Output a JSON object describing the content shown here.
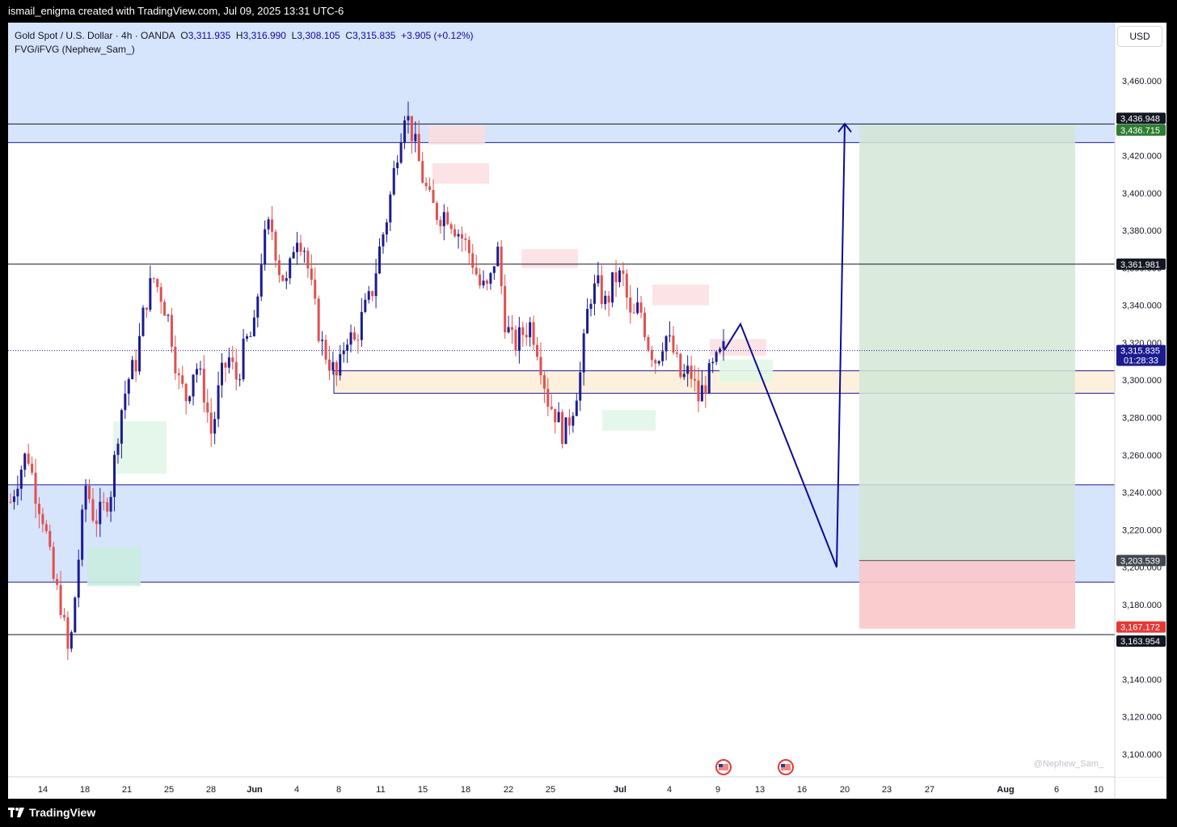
{
  "header": {
    "caption": "ismail_enigma created with TradingView.com, Jul 09, 2025 13:31 UTC-6"
  },
  "legend": {
    "symbol": "Gold Spot / U.S. Dollar · 4h · OANDA",
    "o_label": "O",
    "open": "3,311.935",
    "h_label": "H",
    "high": "3,316.990",
    "l_label": "L",
    "low": "3,308.105",
    "c_label": "C",
    "close": "3,315.835",
    "change": "+3.905 (+0.12%)",
    "indicator": "FVG/iFVG (Nephew_Sam_)"
  },
  "currency_button": "USD",
  "watermark": "@Nephew_Sam_",
  "footer": {
    "brand": "TradingView"
  },
  "colors": {
    "up_candle": "#1c1c8f",
    "down_candle": "#e0504f",
    "zone_blue": "#d6e4fc",
    "zone_line": "#1c1c9e",
    "demand_zone": "#fdf1dd",
    "target_zone": "#d4e6d6",
    "stop_zone": "#f9c7c9",
    "last_price": "#1c1c8f"
  },
  "chart_data": {
    "type": "candlestick",
    "symbol": "Gold Spot / U.S. Dollar",
    "timeframe": "4h",
    "ylim": [
      3090,
      3480
    ],
    "y_ticks": [
      "3,100.000",
      "3,120.000",
      "3,140.000",
      "3,160.000",
      "3,180.000",
      "3,200.000",
      "3,220.000",
      "3,240.000",
      "3,260.000",
      "3,280.000",
      "3,300.000",
      "3,320.000",
      "3,340.000",
      "3,360.000",
      "3,380.000",
      "3,400.000",
      "3,420.000",
      "3,440.000",
      "3,460.000"
    ],
    "y_tick_values": [
      3100,
      3120,
      3140,
      3160,
      3180,
      3200,
      3220,
      3240,
      3260,
      3280,
      3300,
      3320,
      3340,
      3360,
      3380,
      3400,
      3420,
      3440,
      3460
    ],
    "x_ticks": [
      "14",
      "18",
      "21",
      "25",
      "28",
      "Jun",
      "4",
      "8",
      "11",
      "15",
      "18",
      "22",
      "25",
      "Jul",
      "4",
      "9",
      "13",
      "16",
      "20",
      "23",
      "27",
      "Aug",
      "6",
      "10"
    ],
    "x_tick_bold": [
      "Jun",
      "Jul",
      "Aug"
    ],
    "anchor_close_path": [
      [
        3235,
        3250,
        3262,
        3240,
        3225,
        3195,
        3180,
        3150,
        3200,
        3245,
        3225,
        3230,
        3242,
        3280,
        3300,
        3310,
        3340,
        3355,
        3345,
        3330,
        3300,
        3290,
        3310,
        3295,
        3270,
        3300,
        3312,
        3300,
        3320,
        3325,
        3370,
        3385,
        3360,
        3350,
        3380,
        3372,
        3345,
        3320,
        3310,
        3300,
        3325,
        3320,
        3335,
        3345,
        3370,
        3390,
        3420,
        3445,
        3430,
        3410,
        3395,
        3388,
        3390,
        3382,
        3375,
        3365,
        3350,
        3348,
        3372,
        3330,
        3318,
        3325,
        3330,
        3315,
        3290,
        3282,
        3270,
        3285,
        3305,
        3345,
        3350,
        3340,
        3355,
        3355,
        3330,
        3340,
        3320,
        3310,
        3325,
        3315,
        3300,
        3305,
        3290,
        3300,
        3308,
        3316
      ]
    ],
    "price_labels": [
      {
        "price": 3436.948,
        "text": "3,436.948",
        "bg": "#131722"
      },
      {
        "price": 3436.715,
        "text": "3,436.715",
        "bg": "#2e7d32"
      },
      {
        "price": 3361.981,
        "text": "3,361.981",
        "bg": "#131722"
      },
      {
        "price": 3315.835,
        "text": "3,315.835",
        "sub": "01:28:33",
        "bg": "#1c1c8f"
      },
      {
        "price": 3203.539,
        "text": "3,203.539",
        "bg": "#434651"
      },
      {
        "price": 3167.172,
        "text": "3,167.172",
        "bg": "#e53935"
      },
      {
        "price": 3163.954,
        "text": "3,163.954",
        "bg": "#131722"
      }
    ],
    "horizontal_lines": [
      3436.948,
      3361.981,
      3163.954
    ],
    "current_price": 3315.835,
    "supply_zone": [
      3427,
      3480
    ],
    "demand_zone_blue": [
      3192,
      3244
    ],
    "order_block": [
      3293,
      3305
    ],
    "position": {
      "entry": 3203.539,
      "target": 3436.715,
      "stop": 3167.172
    },
    "projection": [
      [
        3316,
        0
      ],
      [
        3330,
        1
      ],
      [
        3200,
        2
      ],
      [
        3437,
        3
      ]
    ]
  }
}
